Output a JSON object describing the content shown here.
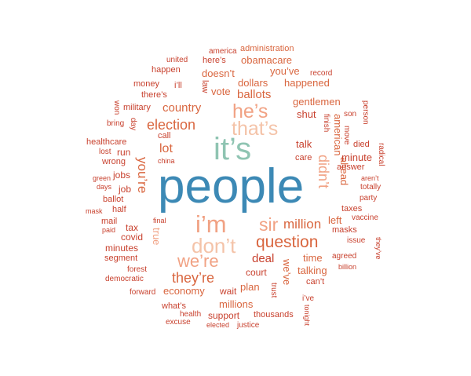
{
  "palette": {
    "large_blue": "#3c89b5",
    "teal": "#8fc4b2",
    "salmon": "#f1a284",
    "orange_red": "#d9663f",
    "brick": "#c8412e",
    "peach": "#f4c3a8"
  },
  "words": [
    {
      "text": "people",
      "color": "#3c89b5"
    },
    {
      "text": "it’s",
      "color": "#8fc4b2"
    },
    {
      "text": "i’m",
      "color": "#f1a284"
    },
    {
      "text": "don’t",
      "color": "#f4c3a8"
    },
    {
      "text": "he’s",
      "color": "#f1a284"
    },
    {
      "text": "that’s",
      "color": "#f4c3a8"
    },
    {
      "text": "sir",
      "color": "#f1a284"
    },
    {
      "text": "question",
      "color": "#d9663f"
    },
    {
      "text": "we’re",
      "color": "#f1a284"
    },
    {
      "text": "election",
      "color": "#d9663f"
    },
    {
      "text": "they’re",
      "color": "#d9663f"
    },
    {
      "text": "million",
      "color": "#d9663f"
    },
    {
      "text": "didn’t",
      "color": "#f1a284"
    },
    {
      "text": "you’re",
      "color": "#d9663f"
    },
    {
      "text": "country",
      "color": "#d9663f"
    },
    {
      "text": "ballots",
      "color": "#d9663f"
    },
    {
      "text": "deal",
      "color": "#c8412e"
    },
    {
      "text": "lot",
      "color": "#d9663f"
    },
    {
      "text": "economy",
      "color": "#d9663f"
    },
    {
      "text": "millions",
      "color": "#d9663f"
    },
    {
      "text": "talking",
      "color": "#d9663f"
    },
    {
      "text": "obamacare",
      "color": "#d9663f"
    },
    {
      "text": "dollars",
      "color": "#d9663f"
    },
    {
      "text": "happened",
      "color": "#d9663f"
    },
    {
      "text": "gentlemen",
      "color": "#d9663f"
    },
    {
      "text": "vote",
      "color": "#d9663f"
    },
    {
      "text": "doesn’t",
      "color": "#d9663f"
    },
    {
      "text": "you’ve",
      "color": "#d9663f"
    },
    {
      "text": "administration",
      "color": "#d9663f"
    },
    {
      "text": "america",
      "color": "#c8412e"
    },
    {
      "text": "here’s",
      "color": "#c8412e"
    },
    {
      "text": "united",
      "color": "#c8412e"
    },
    {
      "text": "happen",
      "color": "#c8412e"
    },
    {
      "text": "record",
      "color": "#c8412e"
    },
    {
      "text": "money",
      "color": "#c8412e"
    },
    {
      "text": "i’ll",
      "color": "#c8412e"
    },
    {
      "text": "law",
      "color": "#c8412e"
    },
    {
      "text": "there’s",
      "color": "#c8412e"
    },
    {
      "text": "military",
      "color": "#c8412e"
    },
    {
      "text": "won",
      "color": "#c8412e"
    },
    {
      "text": "day",
      "color": "#c8412e"
    },
    {
      "text": "shut",
      "color": "#c8412e"
    },
    {
      "text": "finish",
      "color": "#c8412e"
    },
    {
      "text": "son",
      "color": "#c8412e"
    },
    {
      "text": "person",
      "color": "#c8412e"
    },
    {
      "text": "bring",
      "color": "#c8412e"
    },
    {
      "text": "call",
      "color": "#c8412e"
    },
    {
      "text": "healthcare",
      "color": "#c8412e"
    },
    {
      "text": "lost",
      "color": "#c8412e"
    },
    {
      "text": "run",
      "color": "#c8412e"
    },
    {
      "text": "china",
      "color": "#c8412e"
    },
    {
      "text": "wrong",
      "color": "#c8412e"
    },
    {
      "text": "talk",
      "color": "#c8412e"
    },
    {
      "text": "care",
      "color": "#c8412e"
    },
    {
      "text": "american",
      "color": "#d9663f"
    },
    {
      "text": "move",
      "color": "#c8412e"
    },
    {
      "text": "died",
      "color": "#c8412e"
    },
    {
      "text": "minute",
      "color": "#c8412e"
    },
    {
      "text": "radical",
      "color": "#c8412e"
    },
    {
      "text": "green",
      "color": "#c8412e"
    },
    {
      "text": "jobs",
      "color": "#c8412e"
    },
    {
      "text": "answer",
      "color": "#c8412e"
    },
    {
      "text": "aren’t",
      "color": "#c8412e"
    },
    {
      "text": "days",
      "color": "#c8412e"
    },
    {
      "text": "job",
      "color": "#c8412e"
    },
    {
      "text": "totally",
      "color": "#c8412e"
    },
    {
      "text": "ahead",
      "color": "#d9663f"
    },
    {
      "text": "party",
      "color": "#c8412e"
    },
    {
      "text": "ballot",
      "color": "#c8412e"
    },
    {
      "text": "mask",
      "color": "#c8412e"
    },
    {
      "text": "half",
      "color": "#c8412e"
    },
    {
      "text": "taxes",
      "color": "#c8412e"
    },
    {
      "text": "vaccine",
      "color": "#c8412e"
    },
    {
      "text": "mail",
      "color": "#c8412e"
    },
    {
      "text": "final",
      "color": "#c8412e"
    },
    {
      "text": "left",
      "color": "#d9663f"
    },
    {
      "text": "paid",
      "color": "#c8412e"
    },
    {
      "text": "tax",
      "color": "#c8412e"
    },
    {
      "text": "masks",
      "color": "#c8412e"
    },
    {
      "text": "issue",
      "color": "#c8412e"
    },
    {
      "text": "they’ve",
      "color": "#c8412e"
    },
    {
      "text": "covid",
      "color": "#c8412e"
    },
    {
      "text": "true",
      "color": "#f1a284"
    },
    {
      "text": "minutes",
      "color": "#c8412e"
    },
    {
      "text": "segment",
      "color": "#c8412e"
    },
    {
      "text": "time",
      "color": "#d9663f"
    },
    {
      "text": "agreed",
      "color": "#c8412e"
    },
    {
      "text": "forest",
      "color": "#c8412e"
    },
    {
      "text": "court",
      "color": "#c8412e"
    },
    {
      "text": "billion",
      "color": "#c8412e"
    },
    {
      "text": "democratic",
      "color": "#c8412e"
    },
    {
      "text": "can’t",
      "color": "#c8412e"
    },
    {
      "text": "we’ve",
      "color": "#d9663f"
    },
    {
      "text": "plan",
      "color": "#d9663f"
    },
    {
      "text": "forward",
      "color": "#c8412e"
    },
    {
      "text": "wait",
      "color": "#c8412e"
    },
    {
      "text": "trust",
      "color": "#c8412e"
    },
    {
      "text": "i’ve",
      "color": "#c8412e"
    },
    {
      "text": "what’s",
      "color": "#c8412e"
    },
    {
      "text": "health",
      "color": "#c8412e"
    },
    {
      "text": "support",
      "color": "#c8412e"
    },
    {
      "text": "thousands",
      "color": "#c8412e"
    },
    {
      "text": "tonight",
      "color": "#c8412e"
    },
    {
      "text": "excuse",
      "color": "#c8412e"
    },
    {
      "text": "elected",
      "color": "#c8412e"
    },
    {
      "text": "justice",
      "color": "#c8412e"
    }
  ]
}
